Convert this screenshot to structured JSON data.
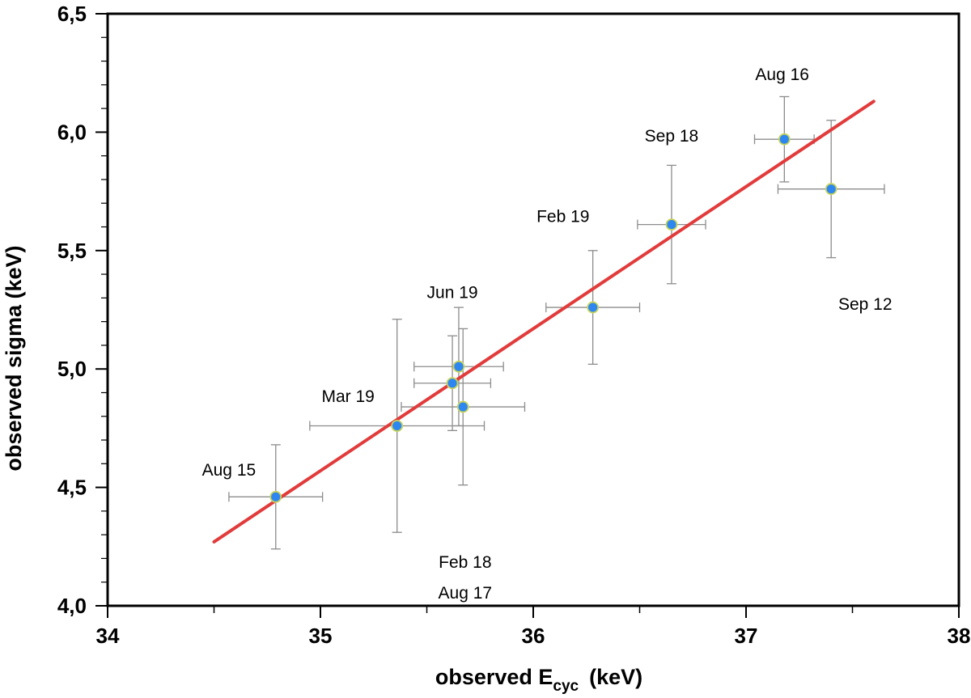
{
  "chart_data": {
    "type": "scatter",
    "title": "",
    "xlabel": "observed E",
    "xlabel_sub": "cyc",
    "xlabel_unit": "(keV)",
    "ylabel": "observed sigma (keV)",
    "xlim": [
      34,
      38
    ],
    "ylim": [
      4.0,
      6.5
    ],
    "x_ticks": [
      34,
      35,
      36,
      37,
      38
    ],
    "x_tick_labels": [
      "34",
      "35",
      "36",
      "37",
      "38"
    ],
    "y_ticks": [
      4.0,
      4.5,
      5.0,
      5.5,
      6.0,
      6.5
    ],
    "y_tick_labels": [
      "4,0",
      "4,5",
      "5,0",
      "5,5",
      "6,0",
      "6,5"
    ],
    "x_minor_ticks": [
      34.5,
      35.5,
      36.5,
      37.5
    ],
    "y_minor_ticks": [
      4.1,
      4.2,
      4.3,
      4.4,
      4.6,
      4.7,
      4.8,
      4.9,
      5.1,
      5.2,
      5.3,
      5.4,
      5.6,
      5.7,
      5.8,
      5.9,
      6.1,
      6.2,
      6.3,
      6.4
    ],
    "grid": false,
    "marker_color": "#2e86f0",
    "marker_edge_color": "#c8d45a",
    "errorbar_color": "#8c8c8c",
    "fit_color": "#e23b3b",
    "points": [
      {
        "x": 34.79,
        "y": 4.46,
        "xerr": 0.22,
        "yerr": 0.22
      },
      {
        "x": 35.36,
        "y": 4.76,
        "xerr": 0.41,
        "yerr_plus": 0.45,
        "yerr_minus": 0.45
      },
      {
        "x": 35.62,
        "y": 4.94,
        "xerr": 0.18,
        "yerr": 0.2
      },
      {
        "x": 35.65,
        "y": 5.01,
        "xerr": 0.21,
        "yerr": 0.25
      },
      {
        "x": 35.67,
        "y": 4.84,
        "xerr": 0.29,
        "yerr": 0.33
      },
      {
        "x": 36.28,
        "y": 5.26,
        "xerr": 0.22,
        "yerr": 0.24
      },
      {
        "x": 36.65,
        "y": 5.61,
        "xerr": 0.16,
        "yerr": 0.25
      },
      {
        "x": 37.18,
        "y": 5.97,
        "xerr": 0.14,
        "yerr": 0.18
      },
      {
        "x": 37.4,
        "y": 5.76,
        "xerr": 0.25,
        "yerr": 0.29
      }
    ],
    "fit_line": {
      "x": [
        34.5,
        37.6
      ],
      "y": [
        4.27,
        6.13
      ]
    },
    "annotations": [
      {
        "text": "Aug 15",
        "x": 34.57,
        "y": 4.55
      },
      {
        "text": "Mar 19",
        "x": 35.13,
        "y": 4.86
      },
      {
        "text": "Jun 19",
        "x": 35.62,
        "y": 5.3
      },
      {
        "text": "Aug 17",
        "x": 35.68,
        "y": 4.03
      },
      {
        "text": "Feb 18",
        "x": 35.68,
        "y": 4.16
      },
      {
        "text": "Feb 19",
        "x": 36.14,
        "y": 5.62
      },
      {
        "text": "Sep 18",
        "x": 36.65,
        "y": 5.96
      },
      {
        "text": "Aug 16",
        "x": 37.17,
        "y": 6.22
      },
      {
        "text": "Sep 12",
        "x": 37.56,
        "y": 5.25
      }
    ]
  }
}
